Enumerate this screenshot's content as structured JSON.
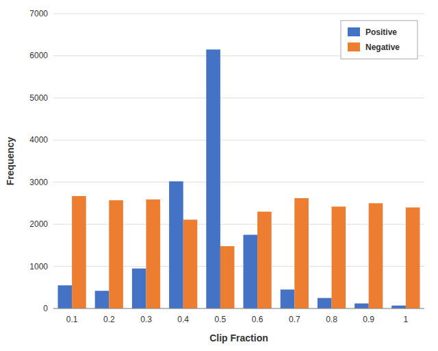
{
  "chart_data": {
    "type": "bar",
    "xlabel": "Clip Fraction",
    "ylabel": "Frequency",
    "categories": [
      "0.1",
      "0.2",
      "0.3",
      "0.4",
      "0.5",
      "0.6",
      "0.7",
      "0.8",
      "0.9",
      "1"
    ],
    "series": [
      {
        "name": "Positive",
        "color": "#4472C4",
        "values": [
          550,
          420,
          950,
          3020,
          6150,
          1750,
          450,
          250,
          120,
          70
        ]
      },
      {
        "name": "Negative",
        "color": "#ED7D31",
        "values": [
          2670,
          2570,
          2590,
          2110,
          1480,
          2300,
          2620,
          2420,
          2500,
          2400
        ]
      }
    ],
    "ylim": [
      0,
      7000
    ],
    "yticks": [
      0,
      1000,
      2000,
      3000,
      4000,
      5000,
      6000,
      7000
    ],
    "grid": true,
    "legend": "upper-right"
  }
}
